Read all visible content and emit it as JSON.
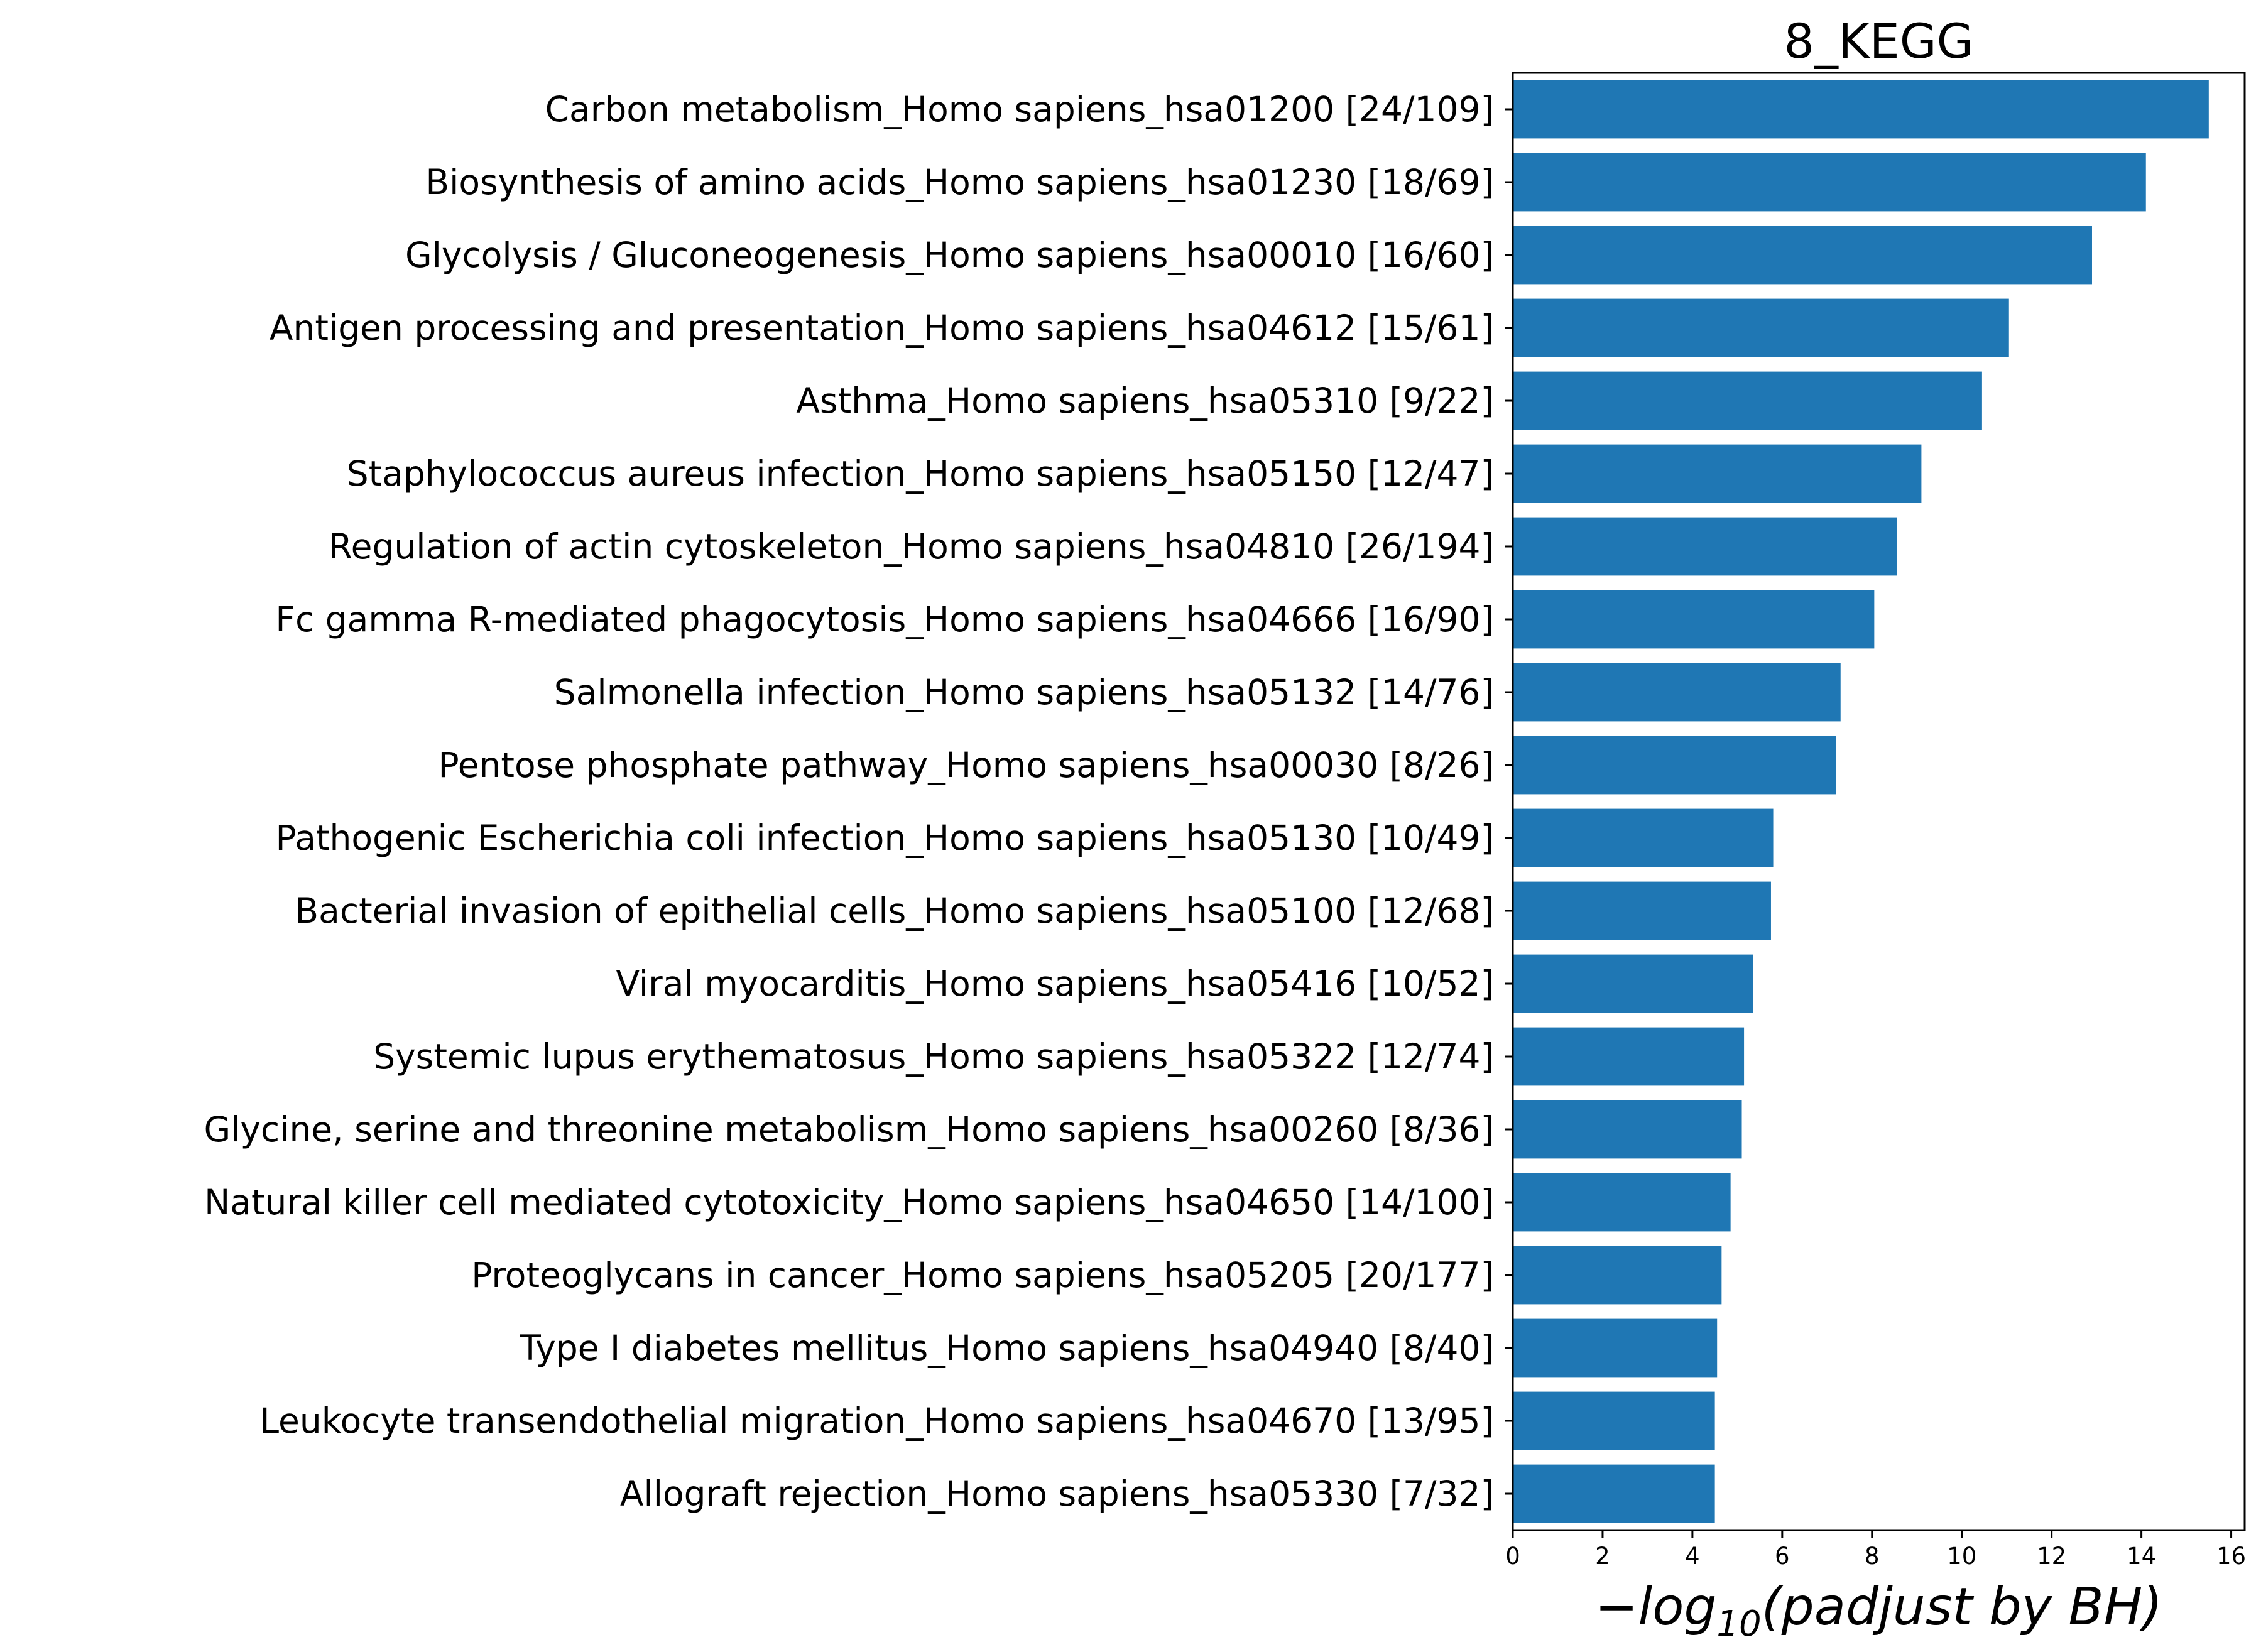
{
  "chart_data": {
    "type": "bar",
    "orientation": "horizontal",
    "title": "8_KEGG",
    "xlabel_parts": {
      "prefix": "−log",
      "subscript": "10",
      "suffix": "(padjust by BH)"
    },
    "ylabel": "",
    "xlim": [
      0,
      16.3
    ],
    "xticks": [
      0,
      2,
      4,
      6,
      8,
      10,
      12,
      14,
      16
    ],
    "grid": false,
    "bar_color": "#1f77b4",
    "categories": [
      "Carbon metabolism_Homo sapiens_hsa01200 [24/109]",
      "Biosynthesis of amino acids_Homo sapiens_hsa01230 [18/69]",
      "Glycolysis / Gluconeogenesis_Homo sapiens_hsa00010 [16/60]",
      "Antigen processing and presentation_Homo sapiens_hsa04612 [15/61]",
      "Asthma_Homo sapiens_hsa05310 [9/22]",
      "Staphylococcus aureus infection_Homo sapiens_hsa05150 [12/47]",
      "Regulation of actin cytoskeleton_Homo sapiens_hsa04810 [26/194]",
      "Fc gamma R-mediated phagocytosis_Homo sapiens_hsa04666 [16/90]",
      "Salmonella infection_Homo sapiens_hsa05132 [14/76]",
      "Pentose phosphate pathway_Homo sapiens_hsa00030 [8/26]",
      "Pathogenic Escherichia coli infection_Homo sapiens_hsa05130 [10/49]",
      "Bacterial invasion of epithelial cells_Homo sapiens_hsa05100 [12/68]",
      "Viral myocarditis_Homo sapiens_hsa05416 [10/52]",
      "Systemic lupus erythematosus_Homo sapiens_hsa05322 [12/74]",
      "Glycine, serine and threonine metabolism_Homo sapiens_hsa00260 [8/36]",
      "Natural killer cell mediated cytotoxicity_Homo sapiens_hsa04650 [14/100]",
      "Proteoglycans in cancer_Homo sapiens_hsa05205 [20/177]",
      "Type I diabetes mellitus_Homo sapiens_hsa04940 [8/40]",
      "Leukocyte transendothelial migration_Homo sapiens_hsa04670 [13/95]",
      "Allograft rejection_Homo sapiens_hsa05330 [7/32]"
    ],
    "values": [
      15.5,
      14.1,
      12.9,
      11.05,
      10.45,
      9.1,
      8.55,
      8.05,
      7.3,
      7.2,
      5.8,
      5.75,
      5.35,
      5.15,
      5.1,
      4.85,
      4.65,
      4.55,
      4.5,
      4.5
    ]
  }
}
